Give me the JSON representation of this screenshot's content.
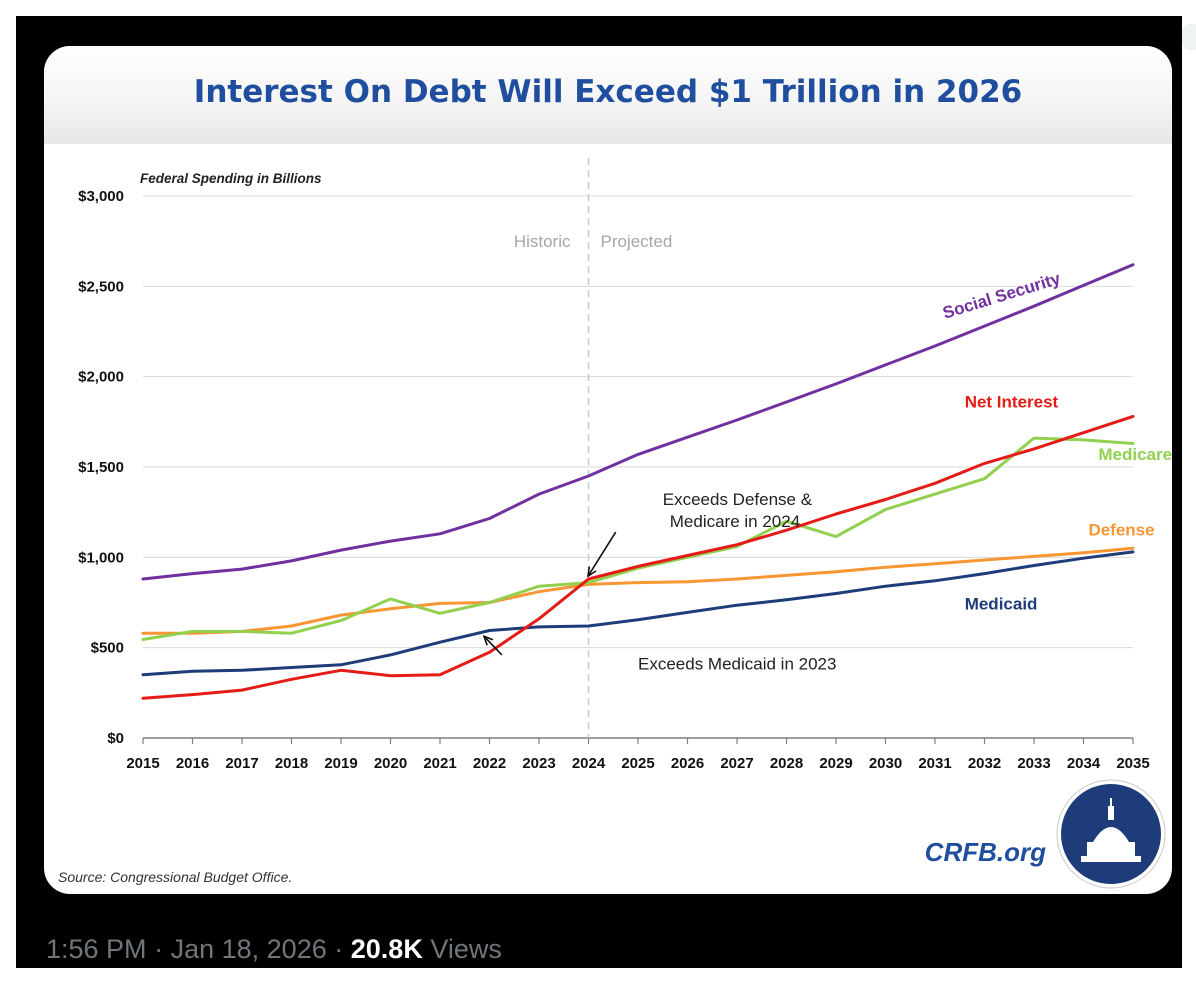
{
  "post": {
    "time": "1:56 PM",
    "date": "Jan 18, 2026",
    "separator": "·",
    "views_count": "20.8K",
    "views_label": "Views"
  },
  "colors": {
    "title": "#1f4e9e",
    "social_security": "#7030a0",
    "net_interest": "#e41b17",
    "medicare": "#92d050",
    "defense": "#f79632",
    "medicaid": "#1f3c7a",
    "grid": "#d9d9d9",
    "divider": "#c8c8c8",
    "crfb": "#1f4e9e"
  },
  "branding": {
    "site": "CRFB.org",
    "logo_icon": "capitol-dome-icon"
  },
  "chart_data": {
    "type": "line",
    "title": "Interest On Debt Will Exceed $1 Trillion in 2026",
    "ylabel": "Federal Spending in Billions",
    "xlabel": "",
    "source": "Source: Congressional Budget Office.",
    "ylim": [
      0,
      3000
    ],
    "yticks": [
      0,
      500,
      1000,
      1500,
      2000,
      2500,
      3000
    ],
    "ytick_labels": [
      "$0",
      "$500",
      "$1,000",
      "$1,500",
      "$2,000",
      "$2,500",
      "$3,000"
    ],
    "grid": true,
    "x": [
      2015,
      2016,
      2017,
      2018,
      2019,
      2020,
      2021,
      2022,
      2023,
      2024,
      2025,
      2026,
      2027,
      2028,
      2029,
      2030,
      2031,
      2032,
      2033,
      2034,
      2035
    ],
    "x_labels": [
      "2015",
      "2016",
      "2017",
      "2018",
      "2019",
      "2020",
      "2021",
      "2022",
      "2023",
      "2024",
      "2025",
      "2026",
      "2027",
      "2028",
      "2029",
      "2030",
      "2031",
      "2032",
      "2033",
      "2034",
      "2035"
    ],
    "divider": {
      "x": 2024,
      "left_label": "Historic",
      "right_label": "Projected"
    },
    "series": [
      {
        "name": "Social Security",
        "color_key": "social_security",
        "values": [
          880,
          910,
          935,
          980,
          1040,
          1090,
          1130,
          1215,
          1350,
          1450,
          1570,
          1665,
          1760,
          1860,
          1960,
          2065,
          2170,
          2280,
          2390,
          2505,
          2620
        ],
        "label_pos": {
          "x": 2031.2,
          "y": 2320,
          "angle": -17
        }
      },
      {
        "name": "Net Interest",
        "color_key": "net_interest",
        "values": [
          220,
          240,
          265,
          325,
          375,
          345,
          350,
          475,
          660,
          880,
          950,
          1010,
          1070,
          1150,
          1240,
          1320,
          1410,
          1520,
          1600,
          1690,
          1780
        ],
        "label_pos": {
          "x": 2031.6,
          "y": 1830,
          "angle": 0
        }
      },
      {
        "name": "Medicare",
        "color_key": "medicare",
        "values": [
          545,
          590,
          590,
          580,
          650,
          770,
          690,
          750,
          840,
          860,
          940,
          1000,
          1060,
          1200,
          1115,
          1265,
          1350,
          1435,
          1660,
          1650,
          1630
        ],
        "label_pos": {
          "x": 2034.3,
          "y": 1540,
          "angle": 0
        }
      },
      {
        "name": "Defense",
        "color_key": "defense",
        "values": [
          580,
          580,
          590,
          620,
          680,
          715,
          745,
          750,
          810,
          850,
          860,
          865,
          880,
          900,
          920,
          945,
          965,
          985,
          1005,
          1025,
          1050
        ],
        "label_pos": {
          "x": 2034.1,
          "y": 1120,
          "angle": 0
        }
      },
      {
        "name": "Medicaid",
        "color_key": "medicaid",
        "values": [
          350,
          370,
          375,
          390,
          405,
          460,
          530,
          595,
          615,
          620,
          655,
          695,
          735,
          765,
          800,
          840,
          870,
          910,
          955,
          995,
          1030
        ],
        "label_pos": {
          "x": 2031.6,
          "y": 710,
          "angle": 0
        }
      }
    ],
    "annotations": [
      {
        "lines": [
          "Exceeds Defense &",
          "Medicare in 2024"
        ],
        "text_pos": {
          "x": 2025.5,
          "y": 1290
        },
        "arrow_from": {
          "x": 2024.55,
          "y": 1140
        },
        "arrow_to": {
          "x": 2024.0,
          "y": 900
        }
      },
      {
        "lines": [
          "Exceeds Medicaid in 2023"
        ],
        "text_pos": {
          "x": 2025.0,
          "y": 380
        },
        "arrow_from": {
          "x": 2022.25,
          "y": 460
        },
        "arrow_to": {
          "x": 2021.9,
          "y": 560
        }
      }
    ]
  }
}
